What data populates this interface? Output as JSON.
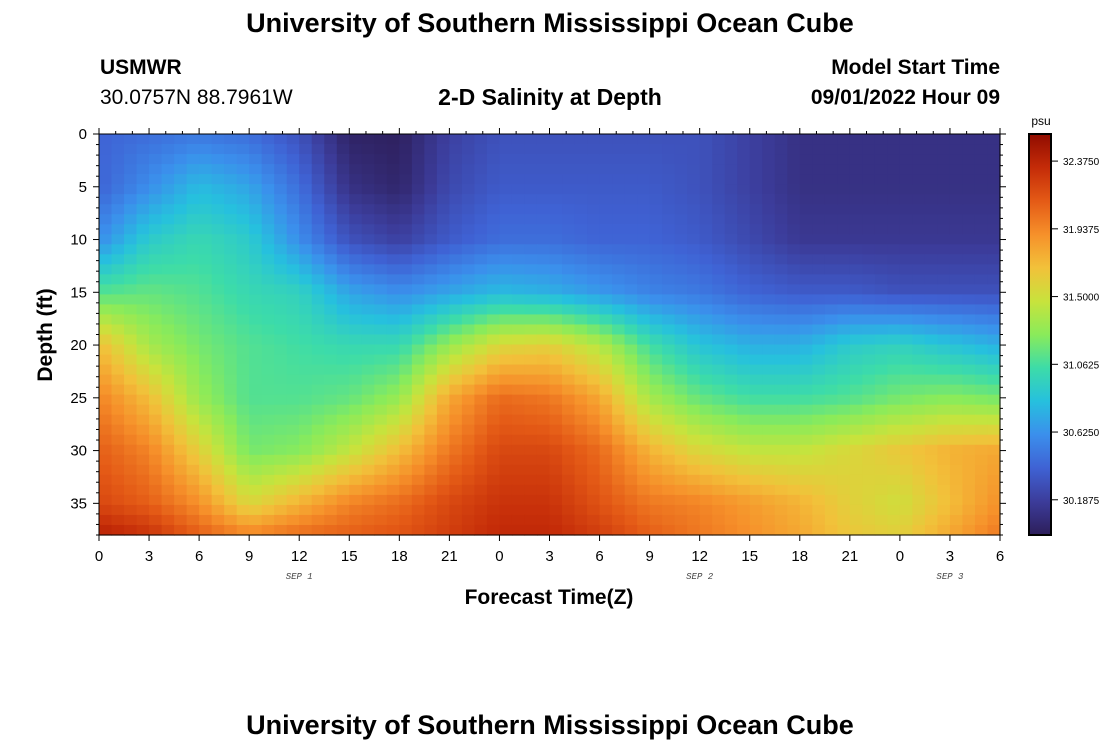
{
  "header": {
    "title": "University of Southern Mississippi Ocean Cube",
    "station": "USMWR",
    "coords": "30.0757N  88.7961W",
    "subtitle": "2-D Salinity at Depth",
    "model_label": "Model Start Time",
    "model_time": "09/01/2022 Hour 09"
  },
  "footer": {
    "title": "University of Southern Mississippi Ocean Cube"
  },
  "chart_data": {
    "type": "heatmap",
    "xlabel": "Forecast Time(Z)",
    "ylabel": "Depth (ft)",
    "x_tick_labels": [
      "0",
      "3",
      "6",
      "9",
      "12",
      "15",
      "18",
      "21",
      "0",
      "3",
      "6",
      "9",
      "12",
      "15",
      "18",
      "21",
      "0",
      "3",
      "6"
    ],
    "date_labels": [
      {
        "label": "SEP 1",
        "at_hour": 12
      },
      {
        "label": "SEP 2",
        "at_hour": 36
      },
      {
        "label": "SEP 3",
        "at_hour": 51
      }
    ],
    "xlim_hours": [
      0,
      54
    ],
    "y_ticks": [
      0,
      5,
      10,
      15,
      20,
      25,
      30,
      35
    ],
    "ylim_ft": [
      0,
      38
    ],
    "y_inverted": true,
    "colorbar": {
      "unit": "psu",
      "ticks": [
        "32.3750",
        "31.9375",
        "31.5000",
        "31.0625",
        "30.6250",
        "30.1875"
      ],
      "range": [
        29.96,
        32.55
      ],
      "colors": [
        "#2d1e5a",
        "#3c3c9a",
        "#3f62d4",
        "#3b8fec",
        "#26c0de",
        "#3ddca8",
        "#8aeb5a",
        "#c8e33c",
        "#f2c13a",
        "#f6902a",
        "#e45a16",
        "#c42b08",
        "#900c00"
      ]
    },
    "hours": [
      0,
      3,
      6,
      9,
      12,
      15,
      18,
      21,
      24,
      27,
      30,
      33,
      36,
      39,
      42,
      45,
      48,
      51,
      54
    ],
    "depths_ft": [
      0,
      5,
      10,
      15,
      20,
      25,
      30,
      35,
      38
    ],
    "salinity_psu": [
      [
        30.4,
        30.45,
        30.5,
        30.45,
        30.3,
        30.0,
        29.98,
        30.2,
        30.3,
        30.3,
        30.3,
        30.3,
        30.3,
        30.2,
        30.1,
        30.1,
        30.1,
        30.1,
        30.1
      ],
      [
        30.4,
        30.6,
        30.8,
        30.7,
        30.45,
        30.1,
        30.02,
        30.25,
        30.35,
        30.35,
        30.35,
        30.35,
        30.3,
        30.2,
        30.1,
        30.1,
        30.1,
        30.1,
        30.1
      ],
      [
        30.6,
        30.9,
        31.0,
        30.9,
        30.6,
        30.3,
        30.2,
        30.35,
        30.45,
        30.45,
        30.4,
        30.4,
        30.35,
        30.25,
        30.15,
        30.15,
        30.15,
        30.15,
        30.15
      ],
      [
        31.1,
        31.15,
        31.1,
        31.0,
        30.95,
        30.7,
        30.6,
        30.7,
        30.8,
        30.75,
        30.65,
        30.55,
        30.5,
        30.4,
        30.35,
        30.35,
        30.3,
        30.3,
        30.3
      ],
      [
        31.7,
        31.35,
        31.2,
        31.1,
        31.05,
        31.0,
        31.0,
        31.3,
        31.55,
        31.6,
        31.4,
        31.05,
        30.85,
        30.75,
        30.75,
        30.9,
        30.95,
        30.85,
        30.75
      ],
      [
        31.95,
        31.7,
        31.3,
        31.1,
        31.1,
        31.15,
        31.3,
        31.8,
        32.05,
        32.0,
        31.8,
        31.35,
        31.15,
        31.05,
        31.05,
        31.1,
        31.2,
        31.25,
        31.2
      ],
      [
        32.1,
        31.95,
        31.6,
        31.2,
        31.25,
        31.45,
        31.7,
        32.0,
        32.2,
        32.2,
        32.05,
        31.75,
        31.55,
        31.45,
        31.45,
        31.55,
        31.65,
        31.75,
        31.8
      ],
      [
        32.2,
        32.1,
        31.9,
        31.55,
        31.75,
        31.95,
        32.05,
        32.2,
        32.3,
        32.3,
        32.15,
        32.0,
        31.95,
        31.85,
        31.75,
        31.6,
        31.5,
        31.7,
        31.9
      ],
      [
        32.4,
        32.3,
        32.1,
        31.95,
        32.05,
        32.1,
        32.15,
        32.25,
        32.35,
        32.35,
        32.25,
        32.1,
        32.0,
        31.9,
        31.8,
        31.65,
        31.6,
        31.8,
        32.0
      ]
    ]
  }
}
